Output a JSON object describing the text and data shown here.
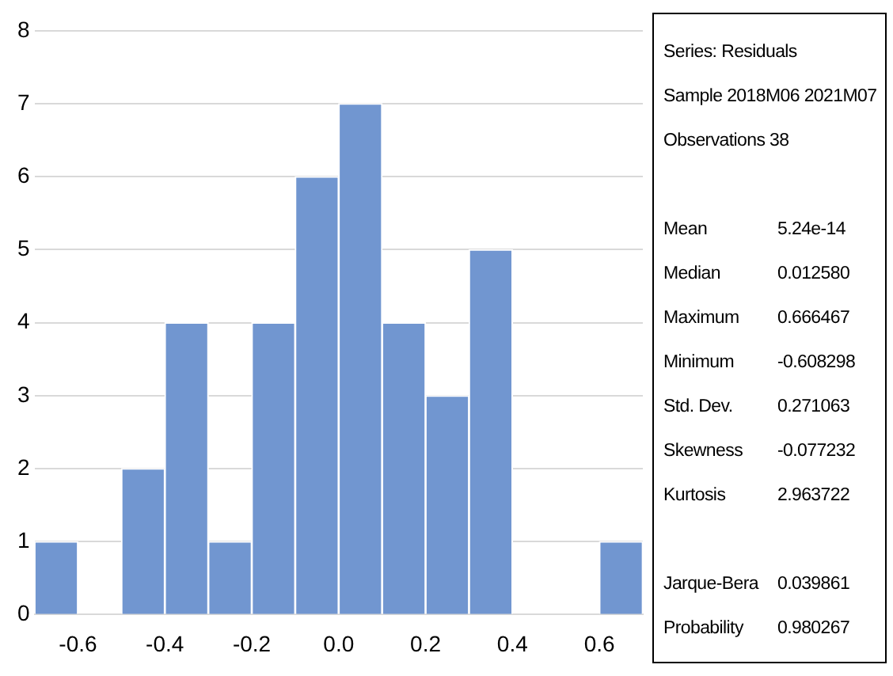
{
  "chart_data": {
    "type": "histogram",
    "bins": [
      -0.7,
      -0.6,
      -0.5,
      -0.4,
      -0.3,
      -0.2,
      -0.1,
      0.0,
      0.1,
      0.2,
      0.3,
      0.4,
      0.5,
      0.6,
      0.7
    ],
    "values": [
      1,
      0,
      2,
      4,
      1,
      4,
      6,
      7,
      4,
      3,
      5,
      0,
      0,
      1
    ],
    "color": "#7196d0",
    "xlim": [
      -0.7,
      0.7
    ],
    "xticks": [
      -0.6,
      -0.4,
      -0.2,
      {
        "value": 0,
        "label": "0.0"
      },
      0.2,
      0.4,
      0.6
    ],
    "ylim": [
      0,
      8
    ],
    "yticks": [
      0,
      1,
      2,
      3,
      4,
      5,
      6,
      7,
      8
    ],
    "grid": "y",
    "legend": false,
    "annotations": [
      "Series: Residuals",
      "Sample 2018M06 2021M07",
      "Observations 38",
      "Mean",
      "5.24e-14",
      "Median",
      "0.012580",
      "Maximum",
      "0.666467",
      "Minimum",
      "-0.608298",
      "Std. Dev.",
      "0.271063",
      "Skewness",
      "-0.077232",
      "Kurtosis",
      "2.963722",
      "Jarque-Bera",
      "0.039861",
      "Probability",
      "0.980267"
    ]
  }
}
